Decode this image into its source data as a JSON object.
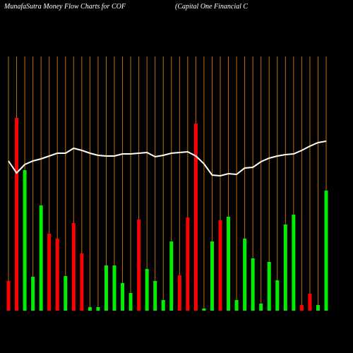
{
  "chart_data": {
    "type": "bar",
    "title": "MunafaSutra  Money Flow  Charts for COF",
    "subtitle": "(Capital One    Financial C",
    "values": [
      42,
      273,
      199,
      48,
      149,
      109,
      102,
      49,
      124,
      81,
      5,
      5,
      64,
      64,
      39,
      25,
      129,
      59,
      42,
      15,
      98,
      50,
      132,
      265,
      3,
      98,
      128,
      133,
      15,
      102,
      74,
      10,
      69,
      43,
      122,
      136,
      8,
      24,
      8,
      170
    ],
    "colors": [
      "#ff0000",
      "#ff0000",
      "#00ee00",
      "#00ee00",
      "#00ee00",
      "#ff0000",
      "#ff0000",
      "#00ee00",
      "#ff0000",
      "#ff0000",
      "#00ee00",
      "#00ee00",
      "#00ee00",
      "#00ee00",
      "#00ee00",
      "#00ee00",
      "#ff0000",
      "#00ee00",
      "#00ee00",
      "#00ee00",
      "#00ee00",
      "#ff0000",
      "#ff0000",
      "#ff0000",
      "#00ee00",
      "#00ee00",
      "#ff0000",
      "#00ee00",
      "#00ee00",
      "#00ee00",
      "#00ee00",
      "#00ee00",
      "#00ee00",
      "#00ee00",
      "#00ee00",
      "#00ee00",
      "#ff0000",
      "#ff0000",
      "#00ee00",
      "#00ee00"
    ],
    "line": {
      "color": "#ffffff",
      "values": [
        212,
        195,
        207,
        212,
        215,
        219,
        223,
        223,
        230,
        227,
        223,
        220,
        219,
        219,
        222,
        222,
        223,
        224,
        218,
        220,
        223,
        224,
        225,
        219,
        208,
        192,
        191,
        194,
        193,
        202,
        203,
        211,
        216,
        219,
        221,
        222,
        227,
        233,
        238,
        240
      ]
    },
    "ylim": [
      0,
      360
    ]
  }
}
